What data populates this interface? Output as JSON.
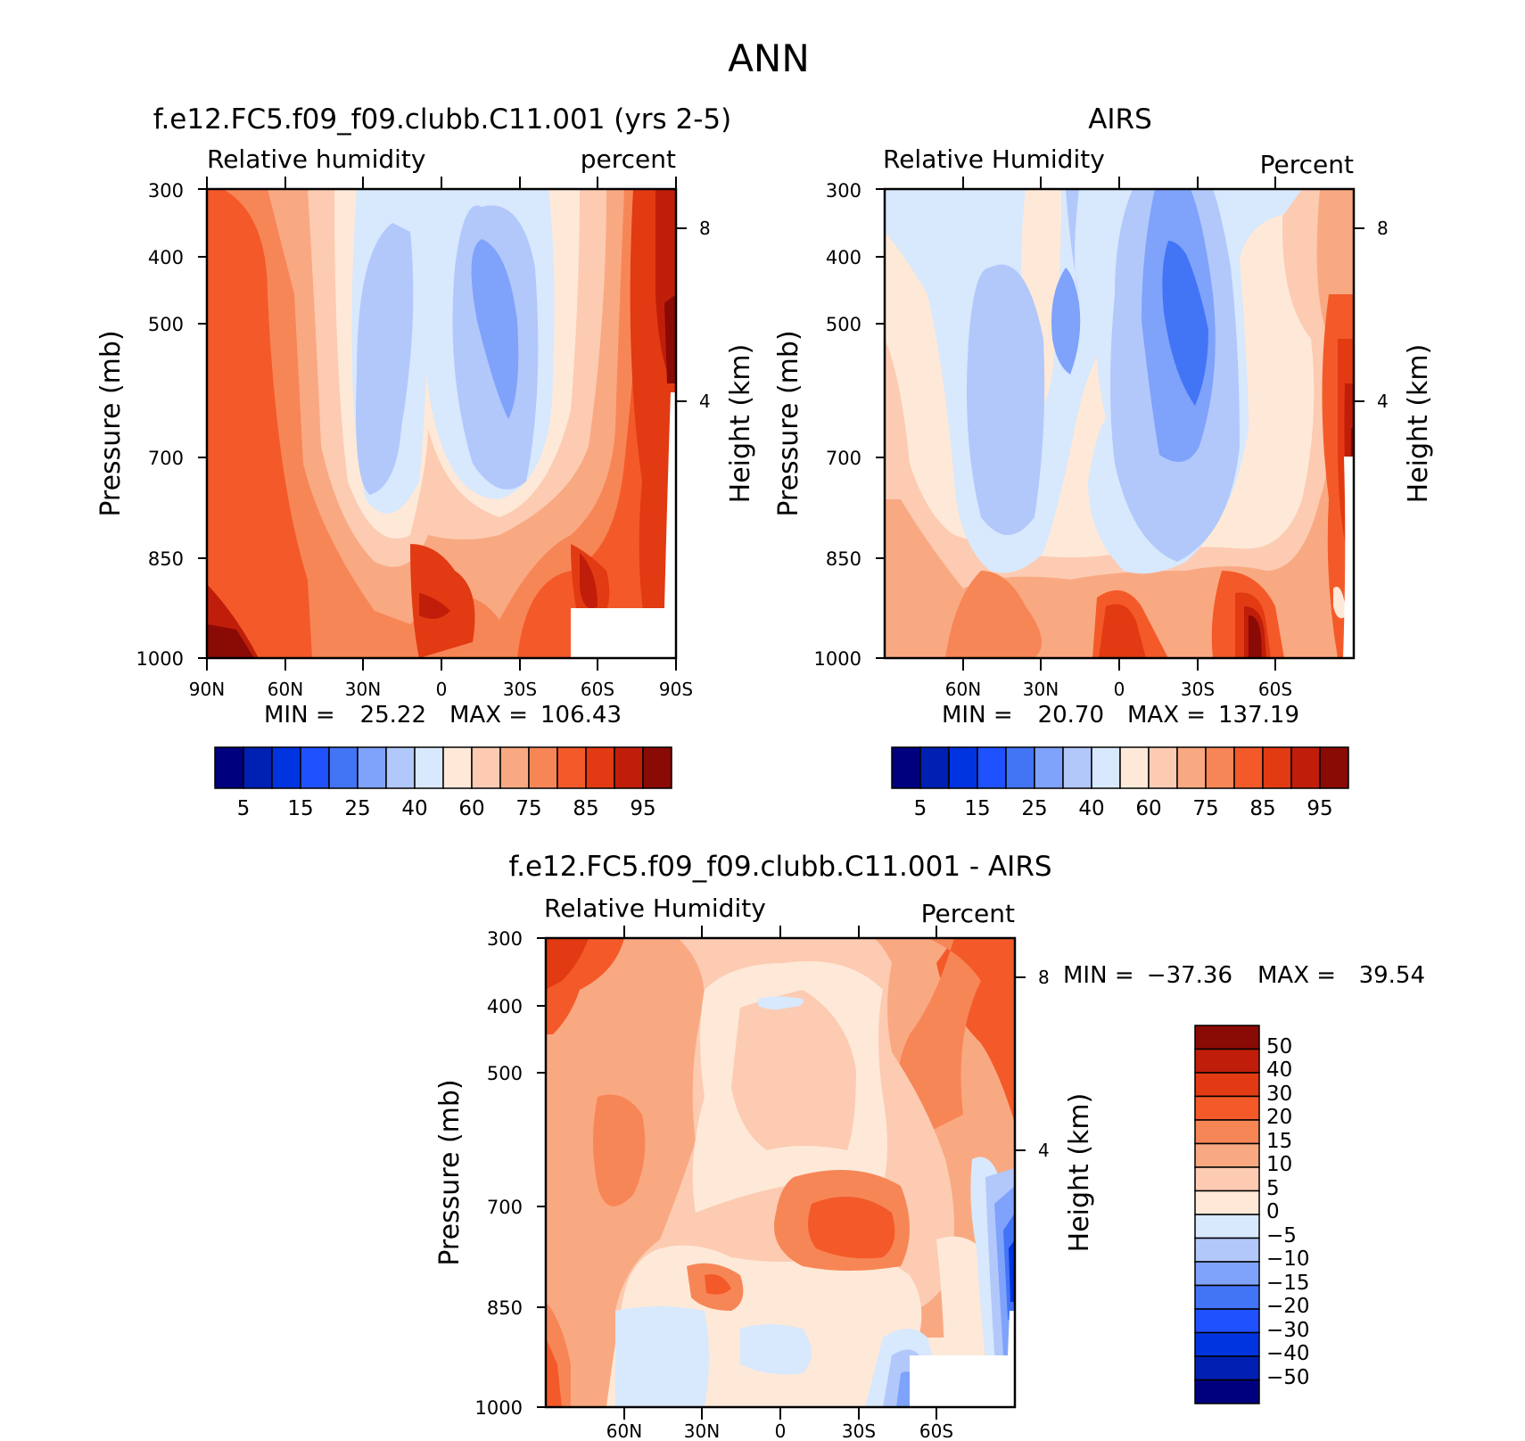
{
  "figure_title": "ANN",
  "colors": {
    "rh_levels": [
      "#00007f",
      "#0020b3",
      "#0034e0",
      "#1f51ff",
      "#4274f6",
      "#7fa2fb",
      "#b2c8fb",
      "#d8e8fd",
      "#fee9d8",
      "#fccbb2",
      "#f9a982",
      "#f78657",
      "#f45a29",
      "#e23a12",
      "#c01e0a",
      "#8a0a05"
    ],
    "diff_levels": [
      "#8a0a05",
      "#c01e0a",
      "#e23a12",
      "#f45a29",
      "#f78657",
      "#f9a982",
      "#fccbb2",
      "#fee9d8",
      "#d8e8fd",
      "#b2c8fb",
      "#7fa2fb",
      "#4274f6",
      "#1f51ff",
      "#0034e0",
      "#0020b3",
      "#00007f"
    ]
  },
  "chart_data": [
    {
      "type": "heatmap",
      "title": "f.e12.FC5.f09_f09.clubb.C11.001 (yrs 2-5)",
      "left_label": "Relative humidity",
      "right_label": "percent",
      "ylabel": "Pressure (mb)",
      "y2label": "Height (km)",
      "x_ticks": [
        "90N",
        "60N",
        "30N",
        "0",
        "30S",
        "60S",
        "90S"
      ],
      "y_ticks": [
        300,
        400,
        500,
        700,
        850,
        1000
      ],
      "y2_ticks": [
        8,
        4
      ],
      "min_label": "MIN =",
      "min_value": "25.22",
      "max_label": "MAX =",
      "max_value": "106.43",
      "colorbar_labels": [
        "5",
        "15",
        "25",
        "40",
        "60",
        "75",
        "85",
        "95"
      ]
    },
    {
      "type": "heatmap",
      "title": "AIRS",
      "left_label": "Relative Humidity",
      "right_label": "Percent",
      "ylabel": "Pressure (mb)",
      "y2label": "Height (km)",
      "x_ticks": [
        "60N",
        "30N",
        "0",
        "30S",
        "60S"
      ],
      "y_ticks": [
        300,
        400,
        500,
        700,
        850,
        1000
      ],
      "y2_ticks": [
        8,
        4
      ],
      "min_label": "MIN =",
      "min_value": "20.70",
      "max_label": "MAX =",
      "max_value": "137.19",
      "colorbar_labels": [
        "5",
        "15",
        "25",
        "40",
        "60",
        "75",
        "85",
        "95"
      ]
    },
    {
      "type": "heatmap",
      "title": "f.e12.FC5.f09_f09.clubb.C11.001 - AIRS",
      "left_label": "Relative Humidity",
      "right_label": "Percent",
      "ylabel": "Pressure (mb)",
      "y2label": "Height (km)",
      "x_ticks": [
        "60N",
        "30N",
        "0",
        "30S",
        "60S"
      ],
      "y_ticks": [
        300,
        400,
        500,
        700,
        850,
        1000
      ],
      "y2_ticks": [
        8,
        4
      ],
      "min_label": "MIN =",
      "min_value": "-37.36",
      "max_label": "MAX =",
      "max_value": "39.54",
      "colorbar_labels": [
        "50",
        "40",
        "30",
        "20",
        "15",
        "10",
        "5",
        "0",
        "-5",
        "-10",
        "-15",
        "-20",
        "-30",
        "-40",
        "-50"
      ]
    }
  ]
}
